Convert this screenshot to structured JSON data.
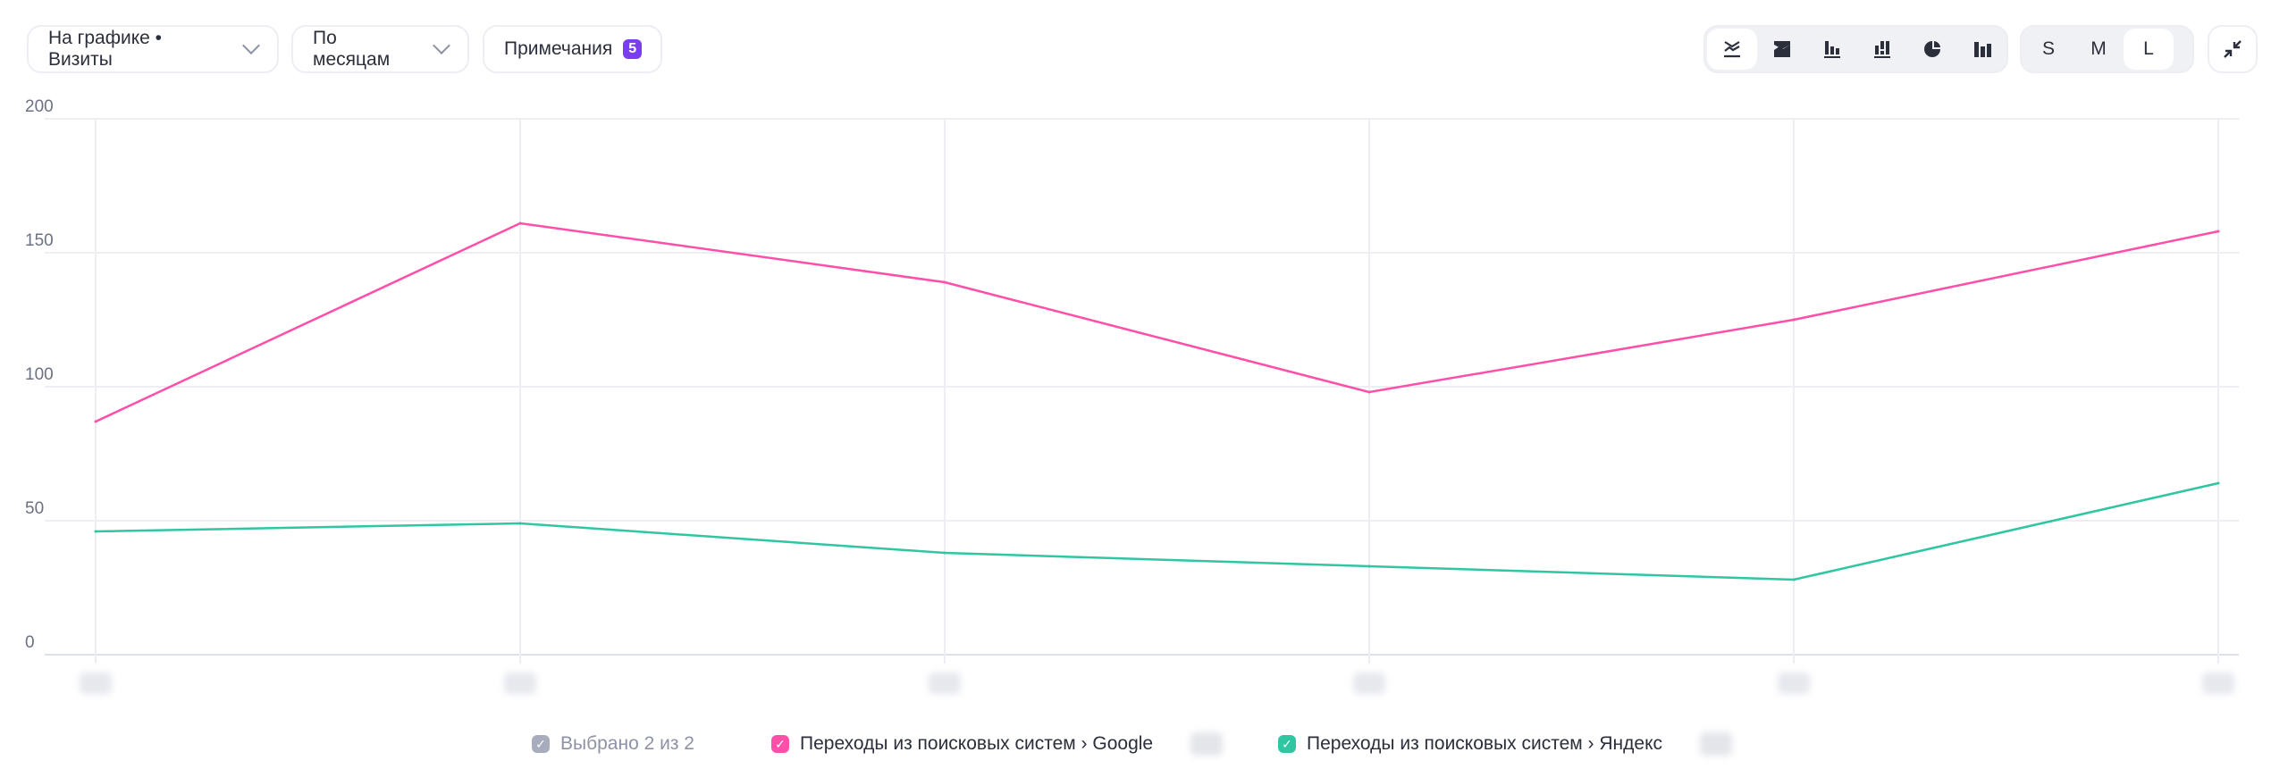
{
  "toolbar": {
    "metric_select": "На графике • Визиты",
    "period_select": "По месяцам",
    "notes_label": "Примечания",
    "notes_count": "5",
    "chart_types": [
      "line-chart-icon",
      "stacked-area-icon",
      "bar-chart-icon",
      "stacked-bar-icon",
      "pie-chart-icon",
      "column-chart-icon"
    ],
    "active_chart_type": "line-chart-icon",
    "sizes": [
      "S",
      "M",
      "L"
    ],
    "active_size": "L",
    "collapse_icon": "collapse-icon"
  },
  "legend": {
    "selected_label": "Выбрано 2 из 2"
  },
  "chart_data": {
    "type": "line",
    "ylim": [
      0,
      200
    ],
    "yticks": [
      "0",
      "50",
      "100",
      "150",
      "200"
    ],
    "grid": true,
    "legend_position": "bottom",
    "series": [
      {
        "name": "Переходы из поисковых систем › Google",
        "color": "#ff4fa8",
        "values": [
          87,
          161,
          139,
          98,
          125,
          158
        ]
      },
      {
        "name": "Переходы из поисковых систем › Яндекс",
        "color": "#2fc6a1",
        "values": [
          46,
          49,
          38,
          33,
          28,
          64
        ]
      }
    ]
  }
}
